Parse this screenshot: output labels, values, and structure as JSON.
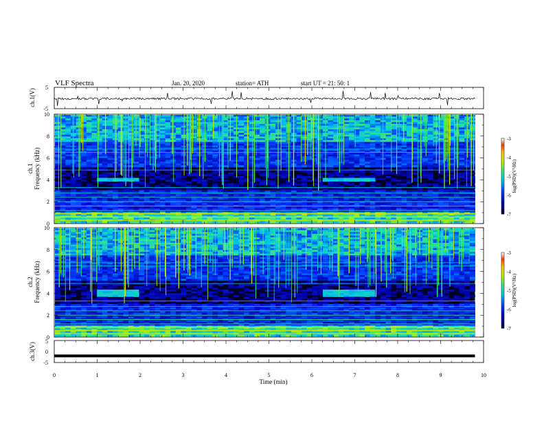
{
  "header": {
    "title": "VLF  Spectra",
    "date": "Jan. 20, 2020",
    "station": "station= ATH",
    "start": "start  UT  =   21: 50: 1"
  },
  "chart_data": [
    {
      "type": "line",
      "name": "ch1-waveform",
      "ylabel": "ch.1(V)",
      "ylim": [
        -5,
        5
      ],
      "y_ticks": [
        "5",
        "-5"
      ],
      "xlim": [
        0,
        10
      ],
      "baseline": -0.3,
      "trace_end": 9.8,
      "color": "#000000"
    },
    {
      "type": "heatmap",
      "name": "ch1-spectrogram",
      "ylabel": "ch.1\nFrequency  (kHz)",
      "ylabel_line1": "ch.1",
      "ylabel_line2": "Frequency  (kHz)",
      "ylim": [
        0,
        10
      ],
      "y_ticks": [
        "10",
        "8",
        "6",
        "4",
        "2",
        "0"
      ],
      "xlim": [
        0,
        10
      ],
      "data_end": 9.8,
      "colorbar": {
        "label": "log(PSD)(V²/Hz)",
        "ticks": [
          "-3",
          "-4",
          "-5",
          "-6",
          "-7"
        ],
        "range": [
          -7,
          -3
        ]
      },
      "emission_bands": [
        {
          "t0": 0.95,
          "t1": 1.9,
          "f0": 3.8,
          "f1": 4.2
        },
        {
          "t0": 6.3,
          "t1": 7.5,
          "f0": 3.8,
          "f1": 4.2
        }
      ]
    },
    {
      "type": "heatmap",
      "name": "ch2-spectrogram",
      "ylabel": "ch.2\nFrequency  (kHz)",
      "ylabel_line1": "ch.2",
      "ylabel_line2": "Frequency  (kHz)",
      "ylim": [
        0,
        10
      ],
      "y_ticks": [
        "10",
        "8",
        "6",
        "4",
        "2",
        "0"
      ],
      "xlim": [
        0,
        10
      ],
      "data_end": 9.8,
      "colorbar": {
        "label": "log(PSD)(V²/Hz)",
        "ticks": [
          "-3",
          "-4",
          "-5",
          "-6",
          "-7"
        ],
        "range": [
          -7,
          -3
        ]
      },
      "emission_bands": [
        {
          "t0": 0.95,
          "t1": 1.9,
          "f0": 3.7,
          "f1": 4.3
        },
        {
          "t0": 6.3,
          "t1": 7.5,
          "f0": 3.7,
          "f1": 4.3
        }
      ]
    },
    {
      "type": "line",
      "name": "ch3-waveform",
      "ylabel": "ch.3(V)",
      "ylim": [
        -5,
        5
      ],
      "y_ticks": [
        "5",
        "0",
        "-5"
      ],
      "xlim": [
        0,
        10
      ],
      "baseline": -2.0,
      "trace_end": 9.8,
      "color": "#000000"
    }
  ],
  "xaxis": {
    "label": "Time  (min)",
    "ticks": [
      "0",
      "1",
      "2",
      "3",
      "4",
      "5",
      "6",
      "7",
      "8",
      "9",
      "10"
    ]
  }
}
